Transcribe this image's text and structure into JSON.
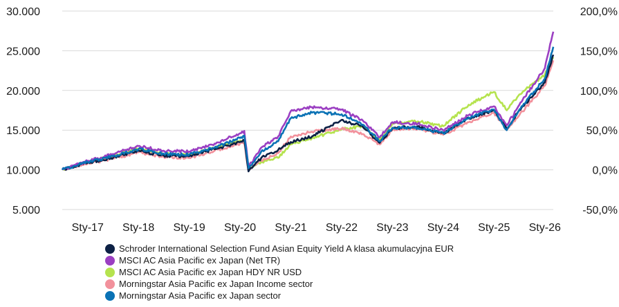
{
  "chart_data": {
    "type": "line",
    "title": "",
    "xlabel": "",
    "ylabel": "",
    "x_range": [
      "2016-07",
      "2026-03"
    ],
    "x_ticks": [
      {
        "date": "2017-01",
        "label": "Sty-17"
      },
      {
        "date": "2018-01",
        "label": "Sty-18"
      },
      {
        "date": "2019-01",
        "label": "Sty-19"
      },
      {
        "date": "2020-01",
        "label": "Sty-20"
      },
      {
        "date": "2021-01",
        "label": "Sty-21"
      },
      {
        "date": "2022-01",
        "label": "Sty-22"
      },
      {
        "date": "2023-01",
        "label": "Sty-23"
      },
      {
        "date": "2024-01",
        "label": "Sty-24"
      },
      {
        "date": "2025-01",
        "label": "Sty-25"
      },
      {
        "date": "2026-01",
        "label": "Sty-26"
      }
    ],
    "y_left": {
      "ylim": [
        5000,
        30000
      ],
      "ticks": [
        {
          "value": 5000,
          "label": "5.000"
        },
        {
          "value": 10000,
          "label": "10.000"
        },
        {
          "value": 15000,
          "label": "15.000"
        },
        {
          "value": 20000,
          "label": "20.000"
        },
        {
          "value": 25000,
          "label": "25.000"
        },
        {
          "value": 30000,
          "label": "30.000"
        }
      ]
    },
    "y_right": {
      "ylim": [
        -50,
        200
      ],
      "ticks": [
        {
          "value": -50,
          "label": "-50,0%"
        },
        {
          "value": 0,
          "label": "0,0%"
        },
        {
          "value": 50,
          "label": "50,0%"
        },
        {
          "value": 100,
          "label": "100,0%"
        },
        {
          "value": 150,
          "label": "150,0%"
        },
        {
          "value": 200,
          "label": "200,0%"
        }
      ]
    },
    "grid": true,
    "legend_position": "bottom",
    "series": [
      {
        "name": "Schroder International Selection Fund Asian Equity Yield A klasa akumulacyjna EUR",
        "color": "#0d2145",
        "points": [
          [
            "2016-07",
            10000
          ],
          [
            "2017-01",
            10900
          ],
          [
            "2017-07",
            11500
          ],
          [
            "2018-01",
            12400
          ],
          [
            "2018-07",
            11800
          ],
          [
            "2019-01",
            11700
          ],
          [
            "2019-07",
            12600
          ],
          [
            "2020-01",
            13500
          ],
          [
            "2020-02",
            13700
          ],
          [
            "2020-03",
            9800
          ],
          [
            "2020-06",
            11500
          ],
          [
            "2020-10",
            12500
          ],
          [
            "2021-01",
            13500
          ],
          [
            "2021-06",
            14200
          ],
          [
            "2022-01",
            16300
          ],
          [
            "2022-06",
            15400
          ],
          [
            "2022-10",
            13400
          ],
          [
            "2023-01",
            15200
          ],
          [
            "2023-07",
            15500
          ],
          [
            "2024-01",
            14600
          ],
          [
            "2024-07",
            16500
          ],
          [
            "2025-01",
            17500
          ],
          [
            "2025-04",
            15200
          ],
          [
            "2025-07",
            17500
          ],
          [
            "2026-01",
            21000
          ],
          [
            "2026-03",
            24500
          ]
        ]
      },
      {
        "name": "MSCI AC Asia Pacific ex Japan (Net TR)",
        "color": "#9b3fc2",
        "points": [
          [
            "2016-07",
            10000
          ],
          [
            "2017-01",
            11100
          ],
          [
            "2017-07",
            12000
          ],
          [
            "2018-01",
            13000
          ],
          [
            "2018-07",
            12400
          ],
          [
            "2019-01",
            12300
          ],
          [
            "2019-07",
            13300
          ],
          [
            "2020-01",
            14600
          ],
          [
            "2020-02",
            14900
          ],
          [
            "2020-03",
            10400
          ],
          [
            "2020-06",
            12800
          ],
          [
            "2020-10",
            14200
          ],
          [
            "2021-01",
            17400
          ],
          [
            "2021-06",
            17900
          ],
          [
            "2022-01",
            17600
          ],
          [
            "2022-06",
            16200
          ],
          [
            "2022-10",
            14100
          ],
          [
            "2023-01",
            16000
          ],
          [
            "2023-07",
            15800
          ],
          [
            "2024-01",
            15000
          ],
          [
            "2024-07",
            16900
          ],
          [
            "2025-01",
            18000
          ],
          [
            "2025-04",
            15600
          ],
          [
            "2025-07",
            18200
          ],
          [
            "2026-01",
            22800
          ],
          [
            "2026-03",
            27400
          ]
        ]
      },
      {
        "name": "MSCI AC Asia Pacific ex Japan HDY NR USD",
        "color": "#b5e34e",
        "points": [
          [
            "2016-07",
            10000
          ],
          [
            "2017-01",
            11000
          ],
          [
            "2017-07",
            11800
          ],
          [
            "2018-01",
            12600
          ],
          [
            "2018-07",
            12000
          ],
          [
            "2019-01",
            11900
          ],
          [
            "2019-07",
            12800
          ],
          [
            "2020-01",
            13700
          ],
          [
            "2020-02",
            13800
          ],
          [
            "2020-03",
            10000
          ],
          [
            "2020-06",
            11000
          ],
          [
            "2020-10",
            11500
          ],
          [
            "2021-01",
            13200
          ],
          [
            "2021-06",
            14000
          ],
          [
            "2022-01",
            15100
          ],
          [
            "2022-06",
            15500
          ],
          [
            "2022-10",
            13800
          ],
          [
            "2023-01",
            15800
          ],
          [
            "2023-07",
            16100
          ],
          [
            "2024-01",
            15500
          ],
          [
            "2024-07",
            18200
          ],
          [
            "2025-01",
            19800
          ],
          [
            "2025-04",
            17500
          ],
          [
            "2025-07",
            19500
          ],
          [
            "2026-01",
            22000
          ],
          [
            "2026-03",
            24200
          ]
        ]
      },
      {
        "name": "Morningstar Asia Pacific ex Japan Income sector",
        "color": "#f2919c",
        "points": [
          [
            "2016-07",
            10000
          ],
          [
            "2017-01",
            10800
          ],
          [
            "2017-07",
            11400
          ],
          [
            "2018-01",
            12200
          ],
          [
            "2018-07",
            11600
          ],
          [
            "2019-01",
            11500
          ],
          [
            "2019-07",
            12400
          ],
          [
            "2020-01",
            13300
          ],
          [
            "2020-02",
            13400
          ],
          [
            "2020-03",
            9900
          ],
          [
            "2020-06",
            11200
          ],
          [
            "2020-10",
            12100
          ],
          [
            "2021-01",
            14200
          ],
          [
            "2021-06",
            14800
          ],
          [
            "2022-01",
            15200
          ],
          [
            "2022-06",
            14500
          ],
          [
            "2022-10",
            13200
          ],
          [
            "2023-01",
            15000
          ],
          [
            "2023-07",
            15200
          ],
          [
            "2024-01",
            14400
          ],
          [
            "2024-07",
            16000
          ],
          [
            "2025-01",
            17200
          ],
          [
            "2025-04",
            15000
          ],
          [
            "2025-07",
            16900
          ],
          [
            "2026-01",
            20600
          ],
          [
            "2026-03",
            23800
          ]
        ]
      },
      {
        "name": "Morningstar Asia Pacific ex Japan sector",
        "color": "#0a72b5",
        "points": [
          [
            "2016-07",
            10000
          ],
          [
            "2017-01",
            11000
          ],
          [
            "2017-07",
            11700
          ],
          [
            "2018-01",
            12600
          ],
          [
            "2018-07",
            12000
          ],
          [
            "2019-01",
            11900
          ],
          [
            "2019-07",
            12800
          ],
          [
            "2020-01",
            14000
          ],
          [
            "2020-02",
            14300
          ],
          [
            "2020-03",
            10200
          ],
          [
            "2020-06",
            12300
          ],
          [
            "2020-10",
            13600
          ],
          [
            "2021-01",
            16500
          ],
          [
            "2021-06",
            17200
          ],
          [
            "2022-01",
            17000
          ],
          [
            "2022-06",
            15700
          ],
          [
            "2022-10",
            13600
          ],
          [
            "2023-01",
            15300
          ],
          [
            "2023-07",
            15300
          ],
          [
            "2024-01",
            14600
          ],
          [
            "2024-07",
            16600
          ],
          [
            "2025-01",
            17600
          ],
          [
            "2025-04",
            15000
          ],
          [
            "2025-07",
            17600
          ],
          [
            "2026-01",
            21500
          ],
          [
            "2026-03",
            25500
          ]
        ]
      }
    ]
  }
}
